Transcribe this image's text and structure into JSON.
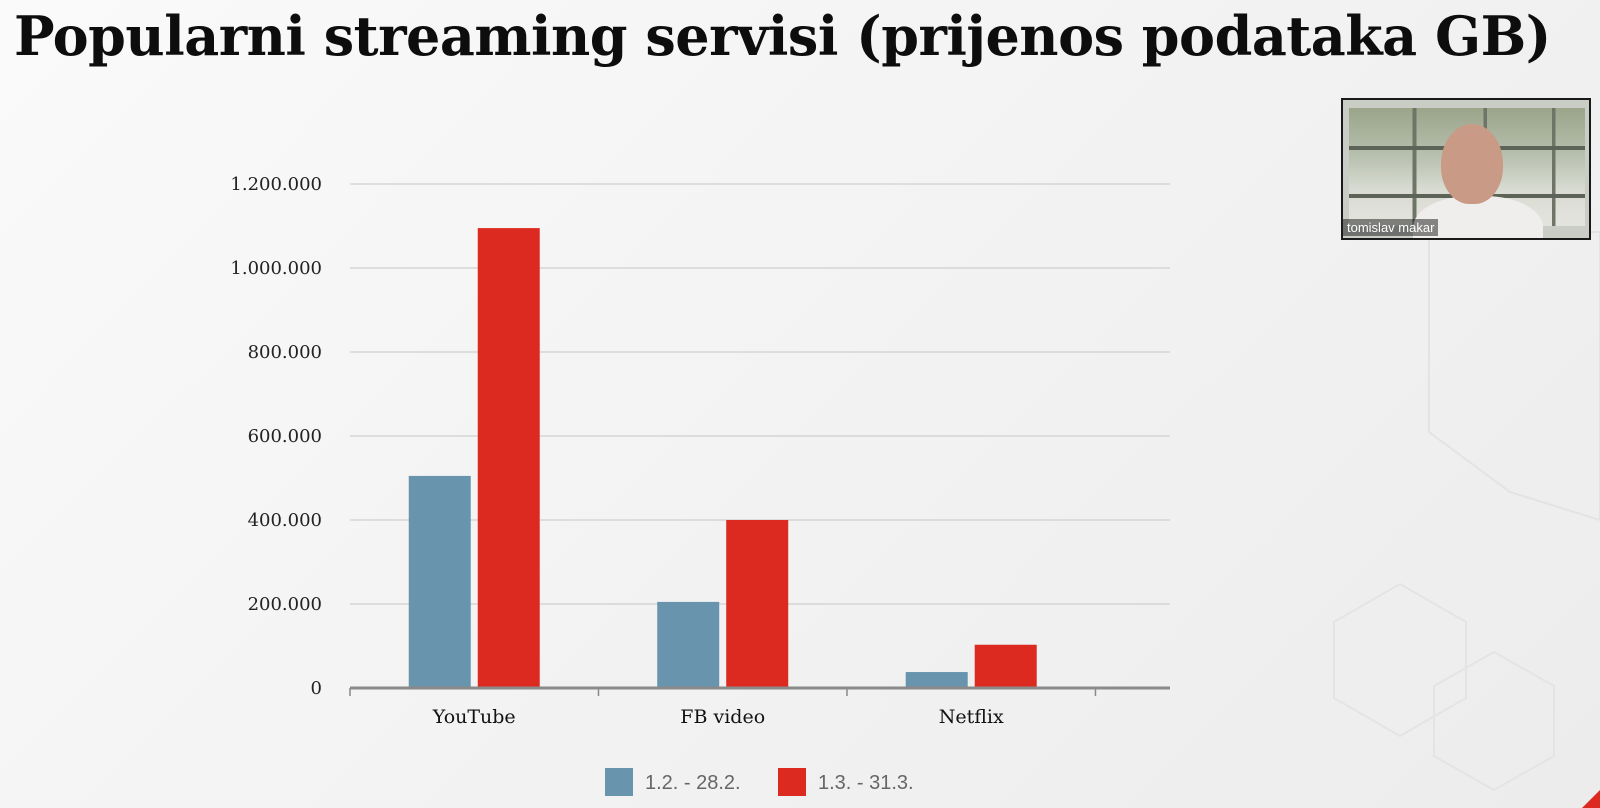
{
  "title": "Popularni streaming servisi (prijenos podataka GB)",
  "participant": {
    "name": "tomislav makar"
  },
  "colors": {
    "series1": "#6894ad",
    "series2": "#dc2a20",
    "grid": "#cfcfcf",
    "axis": "#8a8a8a"
  },
  "chart_data": {
    "type": "bar",
    "categories": [
      "YouTube",
      "FB video",
      "Netflix"
    ],
    "series": [
      {
        "name": "1.2. - 28.2.",
        "values": [
          505000,
          205000,
          38000
        ]
      },
      {
        "name": "1.3. - 31.3.",
        "values": [
          1095000,
          400000,
          103000
        ]
      }
    ],
    "ylim": [
      0,
      1200000
    ],
    "yticks": [
      {
        "value": 0,
        "label": "0"
      },
      {
        "value": 200000,
        "label": "200.000"
      },
      {
        "value": 400000,
        "label": "400.000"
      },
      {
        "value": 600000,
        "label": "600.000"
      },
      {
        "value": 800000,
        "label": "800.000"
      },
      {
        "value": 1000000,
        "label": "1.000.000"
      },
      {
        "value": 1200000,
        "label": "1.200.000"
      }
    ],
    "grid": true,
    "legend_position": "bottom-center"
  }
}
